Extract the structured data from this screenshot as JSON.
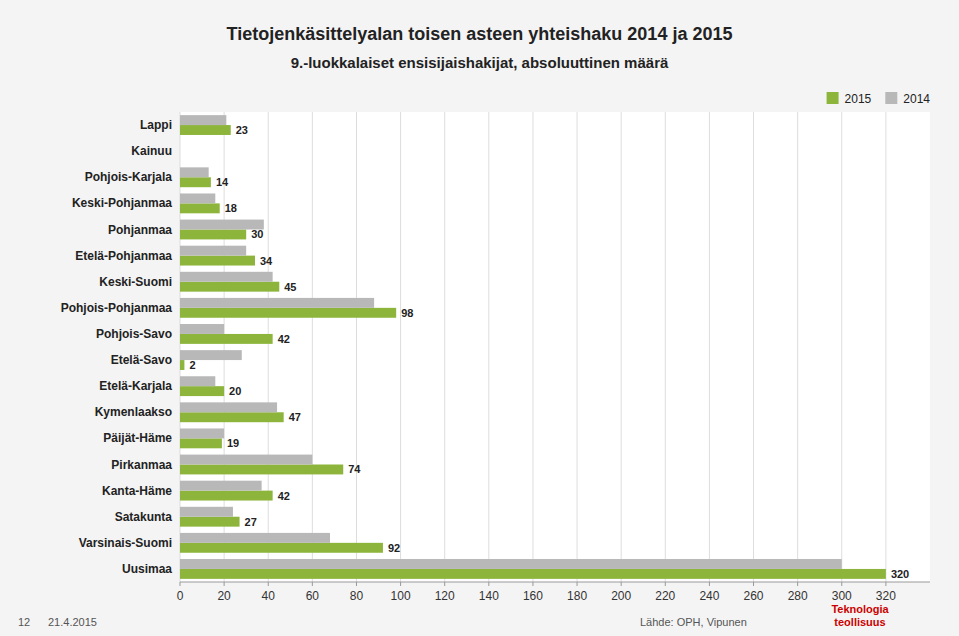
{
  "chart_data": {
    "type": "bar",
    "orientation": "horizontal",
    "title": "Tietojenkäsittelyalan toisen asteen yhteishaku 2014 ja 2015",
    "subtitle": "9.-luokkalaiset ensisijaishakijat, absoluuttinen määrä",
    "categories": [
      "Lappi",
      "Kainuu",
      "Pohjois-Karjala",
      "Keski-Pohjanmaa",
      "Pohjanmaa",
      "Etelä-Pohjanmaa",
      "Keski-Suomi",
      "Pohjois-Pohjanmaa",
      "Pohjois-Savo",
      "Etelä-Savo",
      "Etelä-Karjala",
      "Kymenlaakso",
      "Päijät-Häme",
      "Pirkanmaa",
      "Kanta-Häme",
      "Satakunta",
      "Varsinais-Suomi",
      "Uusimaa"
    ],
    "series": [
      {
        "name": "2015",
        "color": "#8db53b",
        "data_labels": true,
        "values": [
          23,
          0,
          14,
          18,
          30,
          34,
          45,
          98,
          42,
          2,
          20,
          47,
          19,
          74,
          42,
          27,
          92,
          320
        ],
        "value_labels": [
          "23",
          null,
          "14",
          "18",
          "30",
          "34",
          "45",
          "98",
          "42",
          "2",
          "20",
          "47",
          "19",
          "74",
          "42",
          "27",
          "92",
          "320"
        ]
      },
      {
        "name": "2014",
        "color": "#b8b8b8",
        "values": [
          21,
          0,
          13,
          16,
          38,
          30,
          42,
          88,
          20,
          28,
          16,
          44,
          20,
          60,
          37,
          24,
          68,
          300
        ]
      }
    ],
    "xlim": [
      0,
      340
    ],
    "xticks": [
      0,
      20,
      40,
      60,
      80,
      100,
      120,
      140,
      160,
      180,
      200,
      220,
      240,
      260,
      280,
      300,
      320
    ],
    "grid": true,
    "legend": "upper right",
    "annotations": [
      "12",
      "21.4.2015",
      "Lähde: OPH, Vipunen",
      "Teknologia\nteollisuus"
    ]
  }
}
